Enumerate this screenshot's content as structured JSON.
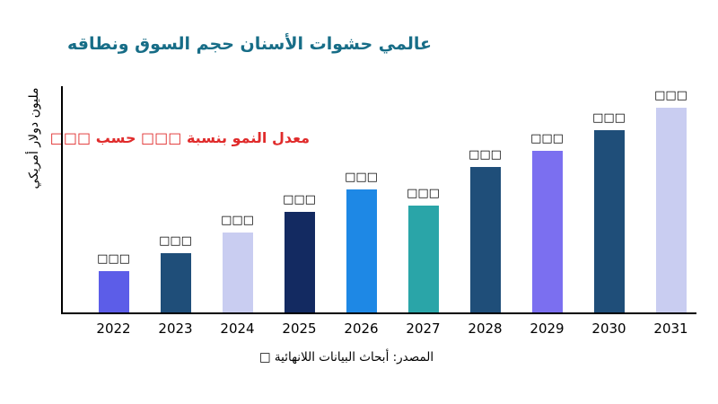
{
  "page": {
    "background": "#ffffff"
  },
  "chart_data": {
    "type": "bar",
    "title": "عالمي حشوات الأسنان حجم السوق ونطاقه",
    "title_color": "#176d87",
    "ylabel": "مليون دولار أمريكي",
    "annotation": {
      "text": "معدل النمو بنسبة □□□ حسب □□□",
      "color": "#e02b2b"
    },
    "source": "المصدر: أبحاث البيانات اللانهائية □",
    "categories": [
      "2022",
      "2023",
      "2024",
      "2025",
      "2026",
      "2027",
      "2028",
      "2029",
      "2030",
      "2031"
    ],
    "values": [
      20,
      29,
      39,
      49,
      60,
      52,
      71,
      79,
      89,
      100
    ],
    "value_labels": [
      "□□□",
      "□□□",
      "□□□",
      "□□□",
      "□□□",
      "□□□",
      "□□□",
      "□□□",
      "□□□",
      "□□□"
    ],
    "bar_colors": [
      "#5c5de8",
      "#1f4e79",
      "#c9cdf1",
      "#132a61",
      "#1e88e5",
      "#2aa5a8",
      "#1f4e79",
      "#7b6ff0",
      "#1f4e79",
      "#c9cdf1"
    ],
    "ylim": [
      0,
      100
    ],
    "grid": false,
    "legend": false,
    "xlabel": ""
  }
}
